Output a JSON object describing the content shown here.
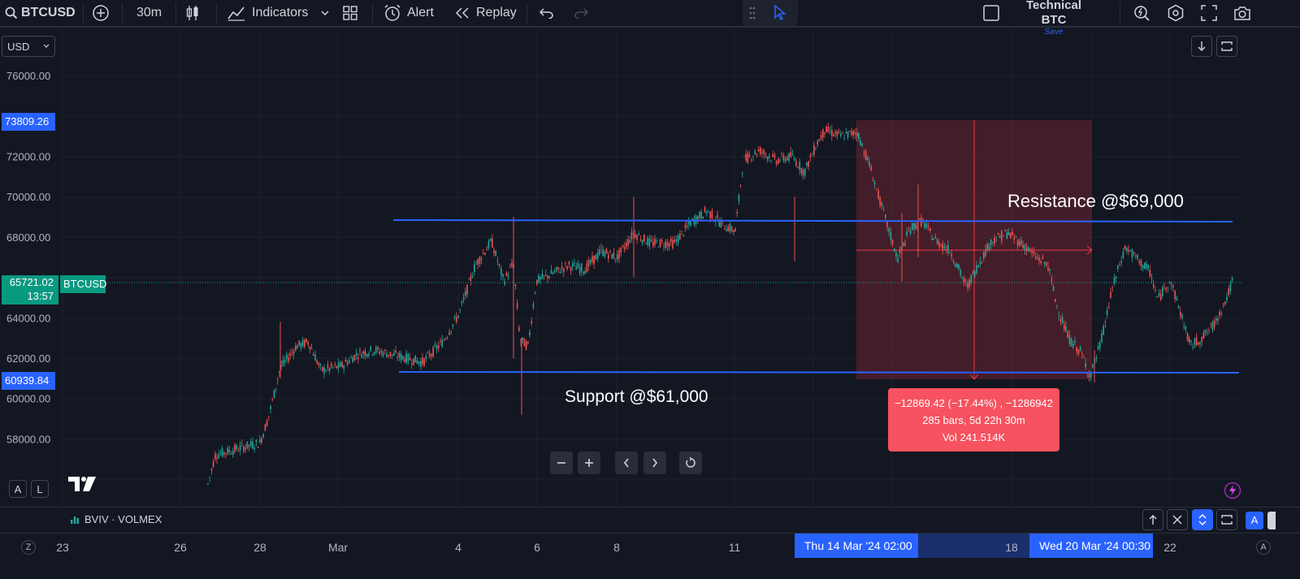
{
  "toolbar": {
    "symbol": "BTCUSD",
    "interval": "30m",
    "indicators": "Indicators",
    "alert": "Alert",
    "replay": "Replay",
    "layout_name": "Technical BTC",
    "save": "Save"
  },
  "currency": "USD",
  "price_axis": {
    "ticks": [
      "76000.00",
      "72000.00",
      "70000.00",
      "68000.00",
      "64000.00",
      "62000.00",
      "60000.00",
      "58000.00"
    ],
    "hi_label": "73809.26",
    "lo_label": "60939.84",
    "current_price": "65721.02",
    "countdown": "13:57",
    "symbol_tag": "BTCUSD"
  },
  "annotations": {
    "resistance": "Resistance @$69,000",
    "support": "Support @$61,000"
  },
  "measure": {
    "line1": "−12869.42 (−17.44%) , −1286942",
    "line2": "285 bars, 5d 22h 30m",
    "line3": "Vol 241.514K"
  },
  "pane": {
    "indicator": "BVIV · VOLMEX"
  },
  "time_axis": {
    "labels": [
      "23",
      "26",
      "28",
      "Mar",
      "4",
      "6",
      "8",
      "11",
      "18",
      "22"
    ],
    "hi_start": "Thu 14 Mar '24   02:00",
    "hi_end": "Wed 20 Mar '24   00:30"
  },
  "footer": {
    "tz": "Z",
    "auto": "A",
    "log": "L",
    "pane_auto": "A"
  },
  "colors": {
    "background": "#131722",
    "up": "#26a69a",
    "down": "#ef5350",
    "lines": "#2962ff",
    "measure_box": "#f7525f"
  }
}
